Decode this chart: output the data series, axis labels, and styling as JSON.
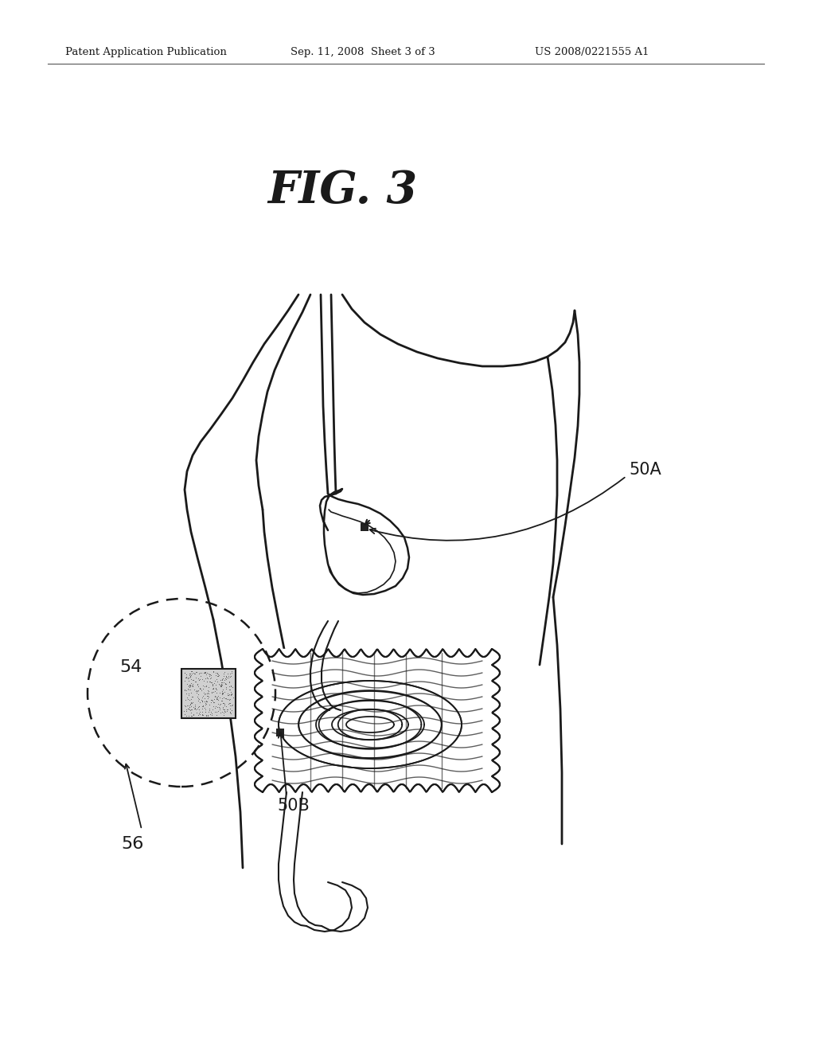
{
  "title": "FIG. 3",
  "header_left": "Patent Application Publication",
  "header_mid": "Sep. 11, 2008  Sheet 3 of 3",
  "header_right": "US 2008/0221555 A1",
  "bg_color": "#ffffff",
  "line_color": "#1a1a1a",
  "label_50A": "50A",
  "label_50B": "50B",
  "label_54": "54",
  "label_56": "56",
  "fig_width": 10.24,
  "fig_height": 13.2,
  "dpi": 100
}
